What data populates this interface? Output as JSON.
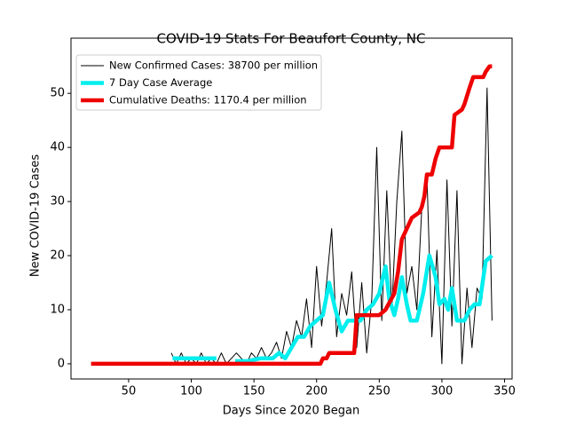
{
  "chart_data": {
    "type": "line",
    "title": "COVID-19 Stats For Beaufort County, NC",
    "xlabel": "Days Since 2020 Began",
    "ylabel": "New COVID-19 Cases",
    "xlim": [
      4,
      356
    ],
    "ylim": [
      -2.8,
      60.2
    ],
    "xticks": [
      50,
      100,
      150,
      200,
      250,
      300,
      350
    ],
    "yticks": [
      0,
      10,
      20,
      30,
      40,
      50
    ],
    "grid": false,
    "legend": "upper left",
    "series": [
      {
        "name": "New Confirmed Cases: 38700 per million",
        "color": "#000000",
        "linewidth": 1,
        "x": [
          84,
          88,
          92,
          96,
          100,
          104,
          108,
          112,
          116,
          120,
          124,
          128,
          132,
          136,
          140,
          144,
          148,
          152,
          156,
          160,
          164,
          168,
          172,
          176,
          180,
          184,
          188,
          192,
          196,
          200,
          204,
          208,
          212,
          216,
          220,
          224,
          228,
          232,
          236,
          240,
          244,
          248,
          252,
          256,
          260,
          264,
          268,
          272,
          276,
          280,
          284,
          288,
          292,
          296,
          300,
          304,
          308,
          312,
          316,
          320,
          324,
          328,
          332,
          336,
          340
        ],
        "values": [
          2,
          0,
          2,
          0,
          1,
          0,
          2,
          0,
          1,
          0,
          2,
          0,
          1,
          2,
          1,
          0,
          2,
          1,
          3,
          1,
          2,
          4,
          1,
          6,
          3,
          8,
          5,
          12,
          3,
          18,
          7,
          15,
          25,
          5,
          13,
          9,
          17,
          3,
          15,
          2,
          12,
          40,
          8,
          32,
          10,
          30,
          43,
          13,
          18,
          10,
          29,
          35,
          5,
          21,
          0,
          34,
          7,
          32,
          0,
          14,
          3,
          14,
          12,
          51,
          8
        ]
      },
      {
        "name": "7 Day Case Average",
        "color": "#00eeee",
        "linewidth": 4.5,
        "x": [
          85,
          95,
          105,
          120,
          125,
          135,
          145,
          155,
          160,
          165,
          170,
          175,
          180,
          185,
          190,
          195,
          200,
          205,
          210,
          215,
          220,
          225,
          230,
          235,
          240,
          245,
          250,
          255,
          258,
          262,
          265,
          268,
          272,
          275,
          280,
          285,
          290,
          295,
          298,
          302,
          305,
          308,
          312,
          318,
          322,
          326,
          330,
          335,
          340
        ],
        "values": [
          1,
          1,
          1,
          1,
          null,
          0.5,
          0.5,
          1,
          1,
          1,
          2,
          1,
          3,
          5,
          5,
          7,
          8,
          9,
          15,
          10,
          6,
          8,
          8,
          8,
          10,
          11,
          13,
          18,
          12,
          9,
          12,
          16,
          11,
          8,
          8,
          13,
          20,
          16,
          11,
          12,
          10,
          14,
          8,
          8,
          10,
          11,
          11,
          19,
          20
        ]
      },
      {
        "name": "Cumulative Deaths: 1170.4 per million",
        "color": "#ee0000",
        "linewidth": 4.5,
        "x": [
          20,
          203,
          205,
          208,
          210,
          230,
          232,
          250,
          255,
          262,
          265,
          268,
          272,
          276,
          282,
          284,
          286,
          288,
          292,
          295,
          298,
          308,
          310,
          316,
          318,
          322,
          325,
          333,
          335,
          338,
          340
        ],
        "values": [
          0,
          0,
          1,
          1,
          2,
          2,
          9,
          9,
          10,
          13,
          17,
          23,
          25,
          27,
          28,
          29,
          31,
          35,
          35,
          38,
          40,
          40,
          46,
          47,
          48,
          51,
          53,
          53,
          54,
          55,
          55
        ]
      }
    ]
  }
}
